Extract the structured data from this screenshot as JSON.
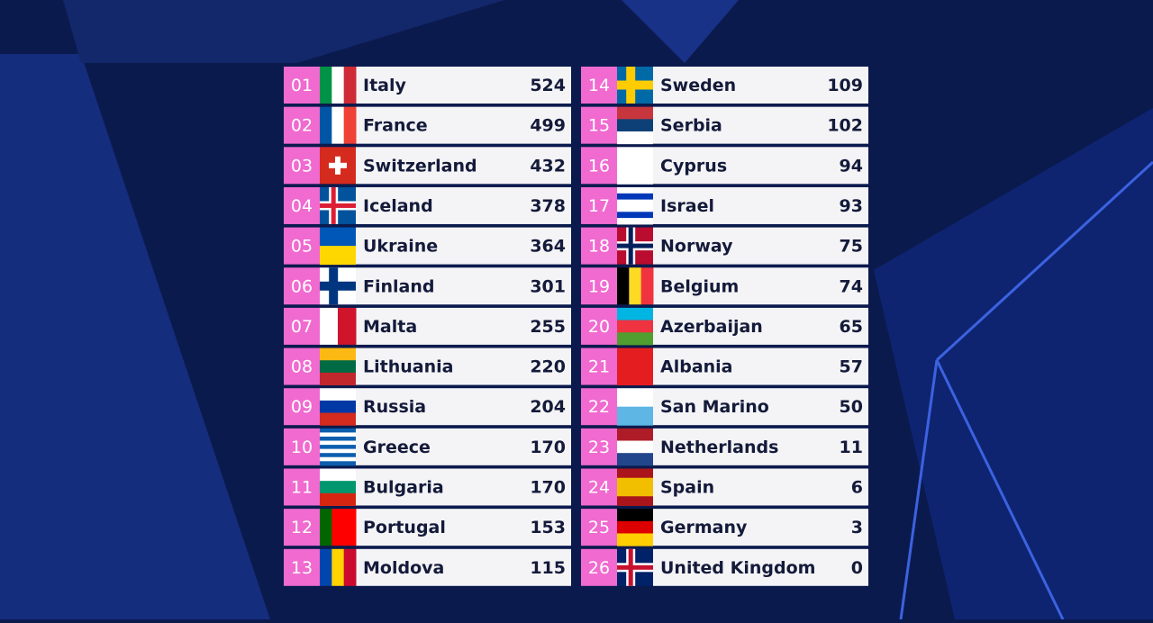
{
  "scoreboard": {
    "rows": [
      {
        "rank": "01",
        "country": "Italy",
        "points": 524
      },
      {
        "rank": "02",
        "country": "France",
        "points": 499
      },
      {
        "rank": "03",
        "country": "Switzerland",
        "points": 432
      },
      {
        "rank": "04",
        "country": "Iceland",
        "points": 378
      },
      {
        "rank": "05",
        "country": "Ukraine",
        "points": 364
      },
      {
        "rank": "06",
        "country": "Finland",
        "points": 301
      },
      {
        "rank": "07",
        "country": "Malta",
        "points": 255
      },
      {
        "rank": "08",
        "country": "Lithuania",
        "points": 220
      },
      {
        "rank": "09",
        "country": "Russia",
        "points": 204
      },
      {
        "rank": "10",
        "country": "Greece",
        "points": 170
      },
      {
        "rank": "11",
        "country": "Bulgaria",
        "points": 170
      },
      {
        "rank": "12",
        "country": "Portugal",
        "points": 153
      },
      {
        "rank": "13",
        "country": "Moldova",
        "points": 115
      },
      {
        "rank": "14",
        "country": "Sweden",
        "points": 109
      },
      {
        "rank": "15",
        "country": "Serbia",
        "points": 102
      },
      {
        "rank": "16",
        "country": "Cyprus",
        "points": 94
      },
      {
        "rank": "17",
        "country": "Israel",
        "points": 93
      },
      {
        "rank": "18",
        "country": "Norway",
        "points": 75
      },
      {
        "rank": "19",
        "country": "Belgium",
        "points": 74
      },
      {
        "rank": "20",
        "country": "Azerbaijan",
        "points": 65
      },
      {
        "rank": "21",
        "country": "Albania",
        "points": 57
      },
      {
        "rank": "22",
        "country": "San Marino",
        "points": 50
      },
      {
        "rank": "23",
        "country": "Netherlands",
        "points": 11
      },
      {
        "rank": "24",
        "country": "Spain",
        "points": 6
      },
      {
        "rank": "25",
        "country": "Germany",
        "points": 3
      },
      {
        "rank": "26",
        "country": "United Kingdom",
        "points": 0
      }
    ]
  }
}
